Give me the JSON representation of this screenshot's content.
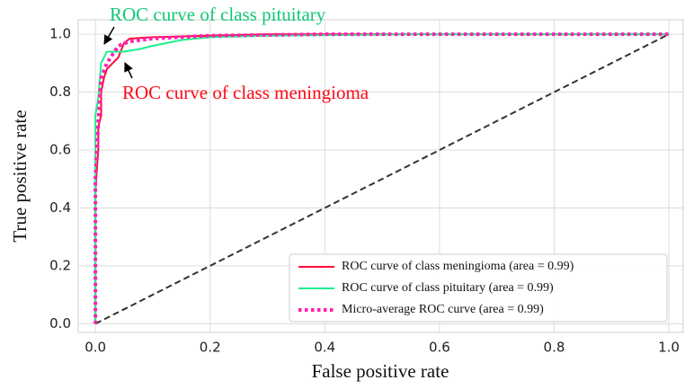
{
  "chart_data": {
    "type": "line",
    "xlabel": "False positive rate",
    "ylabel": "True positive rate",
    "xlim": [
      -0.03,
      1.025
    ],
    "ylim": [
      -0.03,
      1.05
    ],
    "xticks": [
      {
        "value": 0,
        "label": "0.0"
      },
      0.2,
      0.4,
      0.6,
      0.8,
      {
        "value": 1,
        "label": "1.0"
      }
    ],
    "yticks": [
      {
        "value": 0,
        "label": "0.0"
      },
      0.2,
      0.4,
      0.6,
      0.8,
      {
        "value": 1,
        "label": "1.0"
      }
    ],
    "grid": true,
    "legend": "lower right",
    "series": [
      {
        "name": "ROC curve of class meningioma (area = 0.99)",
        "color": "#ff0a3c",
        "style": "solid",
        "x": [
          0,
          0,
          0.005,
          0.005,
          0.01,
          0.01,
          0.015,
          0.02,
          0.03,
          0.04,
          0.05,
          0.06,
          0.1,
          0.2,
          0.3,
          0.5,
          1
        ],
        "values": [
          0,
          0.46,
          0.6,
          0.68,
          0.72,
          0.8,
          0.85,
          0.88,
          0.9,
          0.92,
          0.97,
          0.985,
          0.99,
          0.995,
          1,
          1,
          1
        ]
      },
      {
        "name": "ROC curve of class pituitary (area = 0.99)",
        "color": "#1cf08c",
        "style": "solid",
        "x": [
          0,
          0,
          0.005,
          0.01,
          0.02,
          0.05,
          0.08,
          0.1,
          0.15,
          0.2,
          0.3,
          0.55,
          1
        ],
        "values": [
          0,
          0.72,
          0.78,
          0.9,
          0.94,
          0.94,
          0.95,
          0.96,
          0.98,
          0.99,
          0.995,
          1,
          1
        ]
      },
      {
        "name": "Micro-average ROC curve (area = 0.99)",
        "color": "#ff1fb4",
        "style": "dotted",
        "x": [
          0,
          0,
          0.005,
          0.01,
          0.02,
          0.03,
          0.04,
          0.06,
          0.1,
          0.2,
          0.4,
          1
        ],
        "values": [
          0,
          0.5,
          0.7,
          0.85,
          0.9,
          0.93,
          0.96,
          0.975,
          0.985,
          0.995,
          1,
          1
        ]
      }
    ],
    "reference_line": {
      "x": [
        0,
        1
      ],
      "values": [
        0,
        1
      ],
      "color": "#333333"
    },
    "annotations": [
      {
        "text": "ROC curve of class pituitary",
        "color": "#12c878"
      },
      {
        "text": "ROC curve of class meningioma",
        "color": "#ff0a14"
      }
    ]
  }
}
